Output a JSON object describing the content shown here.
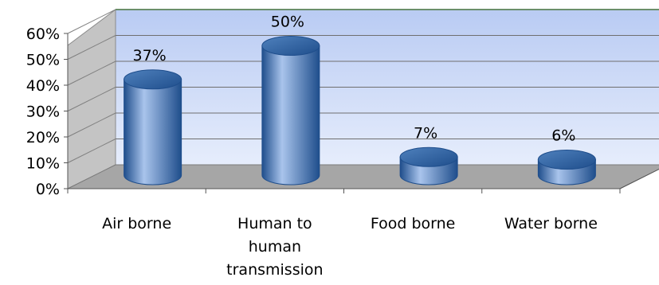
{
  "chart_data": {
    "type": "bar",
    "style": "3d-cylinder",
    "categories": [
      "Air borne",
      "Human to human transmission",
      "Food borne",
      "Water borne"
    ],
    "category_lines": [
      [
        "Air borne"
      ],
      [
        "Human to",
        "human",
        "transmission"
      ],
      [
        "Food borne"
      ],
      [
        "Water borne"
      ]
    ],
    "values": [
      37,
      50,
      7,
      6
    ],
    "data_labels": [
      "37%",
      "50%",
      "7%",
      "6%"
    ],
    "y_ticks": [
      0,
      10,
      20,
      30,
      40,
      50,
      60
    ],
    "y_tick_labels": [
      "0%",
      "10%",
      "20%",
      "30%",
      "40%",
      "50%",
      "60%"
    ],
    "ylim": [
      0,
      60
    ],
    "grid": true,
    "legend": "none",
    "title": "",
    "xlabel": "",
    "ylabel": "",
    "colors": {
      "bar": "#4f81bd",
      "bar_dark": "#1f4e8c",
      "bar_light": "#a9c4ec",
      "back_wall_top": "#b9cbf3",
      "back_wall_bottom": "#e6edfc",
      "floor": "#a6a6a6",
      "side_wall": "#c4c4c4",
      "top_edge": "#6b8f6b"
    }
  }
}
